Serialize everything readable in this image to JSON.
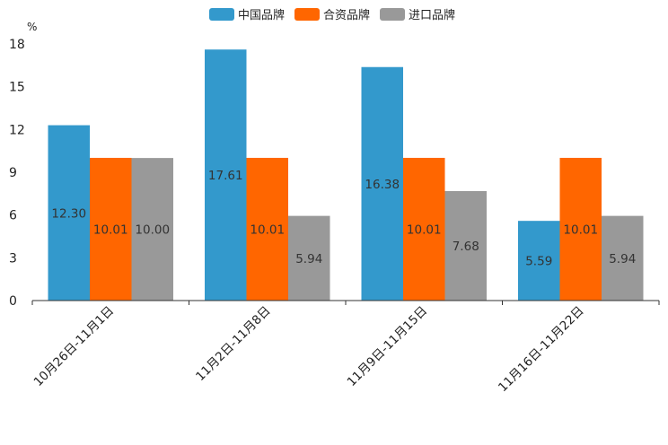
{
  "chart_data": {
    "type": "bar",
    "title": "",
    "xlabel": "",
    "ylabel": "",
    "y_unit": "%",
    "ylim": [
      0,
      18
    ],
    "yticks": [
      0,
      3,
      6,
      9,
      12,
      15,
      18
    ],
    "grid": false,
    "legend_position": "top-center",
    "categories": [
      "10月26日-11月1日",
      "11月2日-11月8日",
      "11月9日-11月15日",
      "11月16日-11月22日"
    ],
    "series": [
      {
        "name": "中国品牌",
        "color": "#3399cc",
        "values": [
          12.3,
          17.61,
          16.38,
          5.59
        ],
        "labels": [
          "12.30",
          "17.61",
          "16.38",
          "5.59"
        ]
      },
      {
        "name": "合资品牌",
        "color": "#ff6600",
        "values": [
          10.01,
          10.01,
          10.01,
          10.01
        ],
        "labels": [
          "10.01",
          "10.01",
          "10.01",
          "10.01"
        ]
      },
      {
        "name": "进口品牌",
        "color": "#999999",
        "values": [
          10.0,
          5.94,
          7.68,
          5.94
        ],
        "labels": [
          "10.00",
          "5.94",
          "7.68",
          "5.94"
        ]
      }
    ]
  }
}
